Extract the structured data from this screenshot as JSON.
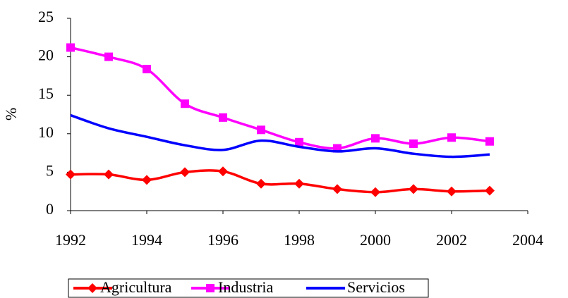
{
  "chart_data": {
    "type": "line",
    "x": [
      1992,
      1993,
      1994,
      1995,
      1996,
      1997,
      1998,
      1999,
      2000,
      2001,
      2002,
      2003
    ],
    "y_label": "%",
    "series": [
      {
        "name": "Agricultura",
        "color": "#ff0000",
        "marker": "diamond",
        "values": [
          4.7,
          4.7,
          4.0,
          5.0,
          5.1,
          3.5,
          3.5,
          2.8,
          2.4,
          2.8,
          2.5,
          2.6
        ]
      },
      {
        "name": "Industria",
        "color": "#ff00ff",
        "marker": "square",
        "values": [
          21.2,
          20.0,
          18.4,
          13.9,
          12.1,
          10.5,
          8.9,
          8.1,
          9.4,
          8.7,
          9.5,
          9.0
        ]
      },
      {
        "name": "Servicios",
        "color": "#0000ff",
        "marker": "none",
        "values": [
          12.4,
          10.7,
          9.6,
          8.5,
          7.9,
          9.1,
          8.3,
          7.7,
          8.1,
          7.4,
          7.0,
          7.3
        ]
      }
    ],
    "xlim": [
      1992,
      2004
    ],
    "xticks": [
      1992,
      1994,
      1996,
      1998,
      2000,
      2002,
      2004
    ],
    "ylim": [
      0,
      25
    ],
    "yticks": [
      0,
      5,
      10,
      15,
      20,
      25
    ],
    "legend": "bottom",
    "grid": false
  }
}
